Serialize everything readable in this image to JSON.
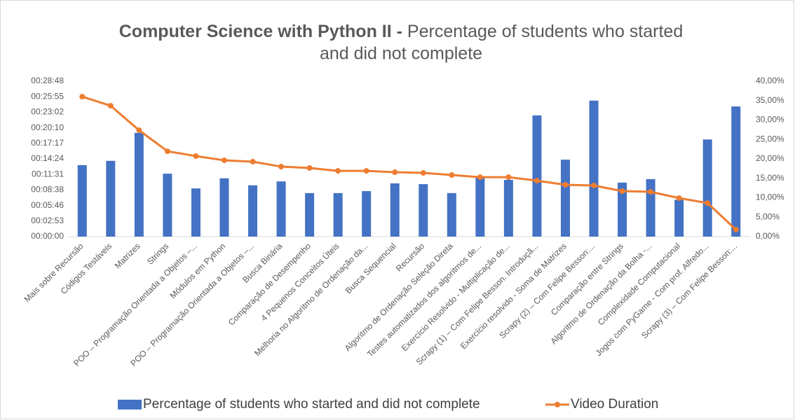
{
  "chart_data": {
    "type": "bar-line",
    "title": "Computer Science with Python II -",
    "subtitle": [
      "Percentage of students who started",
      "and did not complete"
    ],
    "categories": [
      "Mais sobre Recursão",
      "Códigos Testáveis",
      "Matrizes",
      "Strings",
      "POO – Programação Orientada a Objetos –...",
      "Módulos em Python",
      "POO – Programação Orientada a Objetos –...",
      "Busca Binária",
      "Comparação de Desempenho",
      "4 Pequenos Conceitos Úteis",
      "Melhoria no Algoritmo de Ordenação da...",
      "Busca Sequencial",
      "Recursão",
      "Algoritmo de Ordenação Seleção Direta",
      "Testes automatizados dos algoritmos de...",
      "Exercício Resolvido - Multiplicação de...",
      "Scrapy (1) – Com Felipe Besson. Introduçã...",
      "Exercício resolvido - Soma de Matrizes",
      "Scrapy (2) – Com Felipe Besson:...",
      "Comparação entre Strings",
      "Algoritmo de Ordenação da Bolha -...",
      "Complexidade Computacional",
      "Jogos com PyGame - Com prof. Alfredo...",
      "Scrapy (3) – Com Felipe Besson:..."
    ],
    "series": [
      {
        "name": "Percentage of students who started and did not complete",
        "type": "bar",
        "axis": "y2",
        "color": "#4472c4",
        "values": [
          18.4,
          19.5,
          26.7,
          16.2,
          12.4,
          15.0,
          13.2,
          14.2,
          11.2,
          11.2,
          11.7,
          13.7,
          13.5,
          11.2,
          15.3,
          14.6,
          31.2,
          19.8,
          35.0,
          13.9,
          14.8,
          9.5,
          25.0,
          33.5
        ]
      },
      {
        "name": "Video Duration",
        "type": "line",
        "axis": "y",
        "color": "#ed7d31",
        "values": [
          1556,
          1455,
          1183,
          949,
          895,
          848,
          833,
          778,
          763,
          731,
          731,
          716,
          708,
          685,
          661,
          661,
          622,
          576,
          568,
          506,
          498,
          428,
          373,
          78
        ]
      }
    ],
    "ylim": [
      0,
      1728
    ],
    "yticks": [
      {
        "value": 0,
        "label": "00:00:00"
      },
      {
        "value": 172.8,
        "label": "00:02:53"
      },
      {
        "value": 345.6,
        "label": "00:05:46"
      },
      {
        "value": 518.4,
        "label": "00:08:38"
      },
      {
        "value": 691.2,
        "label": "00:11:31"
      },
      {
        "value": 864,
        "label": "00:14:24"
      },
      {
        "value": 1036.8,
        "label": "00:17:17"
      },
      {
        "value": 1209.6,
        "label": "00:20:10"
      },
      {
        "value": 1382.4,
        "label": "00:23:02"
      },
      {
        "value": 1555.2,
        "label": "00:25:55"
      },
      {
        "value": 1728,
        "label": "00:28:48"
      }
    ],
    "y2lim": [
      0,
      40
    ],
    "y2ticks": [
      {
        "value": 0,
        "label": "0,00%"
      },
      {
        "value": 5,
        "label": "5,00%"
      },
      {
        "value": 10,
        "label": "10,00%"
      },
      {
        "value": 15,
        "label": "15,00%"
      },
      {
        "value": 20,
        "label": "20,00%"
      },
      {
        "value": 25,
        "label": "25,00%"
      },
      {
        "value": 30,
        "label": "30,00%"
      },
      {
        "value": 35,
        "label": "35,00%"
      },
      {
        "value": 40,
        "label": "40,00%"
      }
    ],
    "legend": "bottom"
  }
}
